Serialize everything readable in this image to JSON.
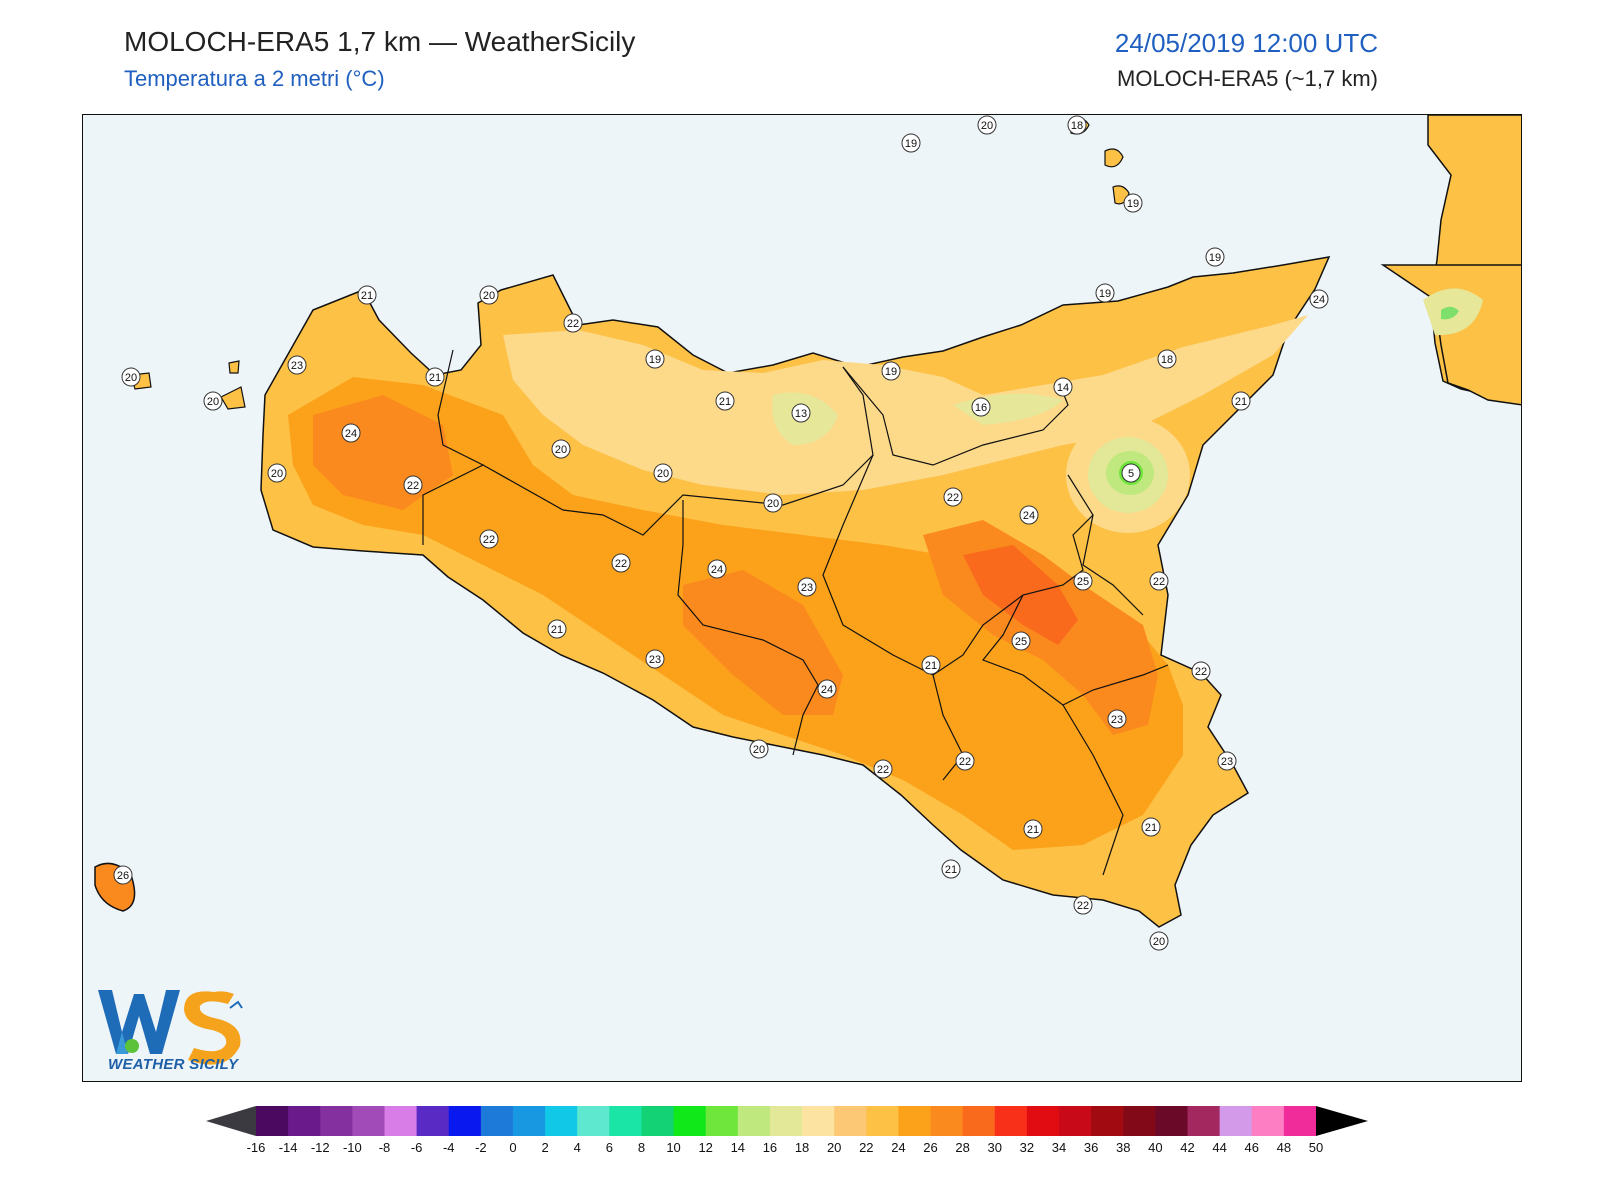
{
  "header": {
    "title": "MOLOCH-ERA5 1,7 km — WeatherSicily",
    "subtitle": "Temperatura a 2 metri (°C)",
    "datetime": "24/05/2019 12:00 UTC",
    "model": "MOLOCH-ERA5 (~1,7 km)"
  },
  "logo": {
    "letters": "WS",
    "caption": "WEATHER SICILY"
  },
  "colors": {
    "sea": "#eef5f9",
    "land_base": "#fdc146",
    "warm": "#fca21a",
    "hot": "#fb8a1e",
    "hottest": "#fa6a1c",
    "cool": "#fdd98a",
    "cooler": "#e7e79a",
    "cold_green": "#7ee06a",
    "title_blue": "#1f5fbf"
  },
  "colorbar": {
    "ticks": [
      "-16",
      "-14",
      "-12",
      "-10",
      "-8",
      "-6",
      "-4",
      "-2",
      "0",
      "2",
      "4",
      "6",
      "8",
      "10",
      "12",
      "14",
      "16",
      "18",
      "20",
      "22",
      "24",
      "26",
      "28",
      "30",
      "32",
      "34",
      "36",
      "38",
      "40",
      "42",
      "44",
      "46",
      "48",
      "50"
    ],
    "colors": [
      "#2e0a3d",
      "#4b0a60",
      "#6a1a8a",
      "#84309e",
      "#a14bb8",
      "#d87de8",
      "#5a2bc4",
      "#0a18f0",
      "#1e7ad8",
      "#1798e0",
      "#11c8e6",
      "#5ee8d0",
      "#1ae4a6",
      "#13d276",
      "#10e81a",
      "#6ee63c",
      "#bfe87e",
      "#e2e898",
      "#fde3a2",
      "#fdc876",
      "#fdc146",
      "#fca21a",
      "#fb8a1e",
      "#fa6a1c",
      "#f8301a",
      "#e00c12",
      "#c80a18",
      "#a00a10",
      "#820a18",
      "#6a0a28",
      "#a42860",
      "#d29ae8",
      "#fd7ec2",
      "#f02c9a",
      "#7a7a7a",
      "#3a3a3a"
    ]
  },
  "stations": [
    {
      "v": "20"
    },
    {
      "v": "18"
    },
    {
      "v": "19"
    },
    {
      "v": "19"
    },
    {
      "v": "19"
    },
    {
      "v": "24"
    },
    {
      "v": "19"
    },
    {
      "v": "18"
    },
    {
      "v": "21"
    },
    {
      "v": "20"
    },
    {
      "v": "22"
    },
    {
      "v": "23"
    },
    {
      "v": "21"
    },
    {
      "v": "19"
    },
    {
      "v": "20"
    },
    {
      "v": "20"
    },
    {
      "v": "24"
    },
    {
      "v": "21"
    },
    {
      "v": "13"
    },
    {
      "v": "19"
    },
    {
      "v": "16"
    },
    {
      "v": "14"
    },
    {
      "v": "20"
    },
    {
      "v": "5"
    },
    {
      "v": "20"
    },
    {
      "v": "22"
    },
    {
      "v": "20"
    },
    {
      "v": "22"
    },
    {
      "v": "24"
    },
    {
      "v": "20"
    },
    {
      "v": "21"
    },
    {
      "v": "22"
    },
    {
      "v": "22"
    },
    {
      "v": "24"
    },
    {
      "v": "23"
    },
    {
      "v": "25"
    },
    {
      "v": "22"
    },
    {
      "v": "21"
    },
    {
      "v": "23"
    },
    {
      "v": "25"
    },
    {
      "v": "21"
    },
    {
      "v": "22"
    },
    {
      "v": "24"
    },
    {
      "v": "23"
    },
    {
      "v": "20"
    },
    {
      "v": "22"
    },
    {
      "v": "22"
    },
    {
      "v": "23"
    },
    {
      "v": "21"
    },
    {
      "v": "21"
    },
    {
      "v": "21"
    },
    {
      "v": "22"
    },
    {
      "v": "20"
    },
    {
      "v": "26"
    }
  ]
}
